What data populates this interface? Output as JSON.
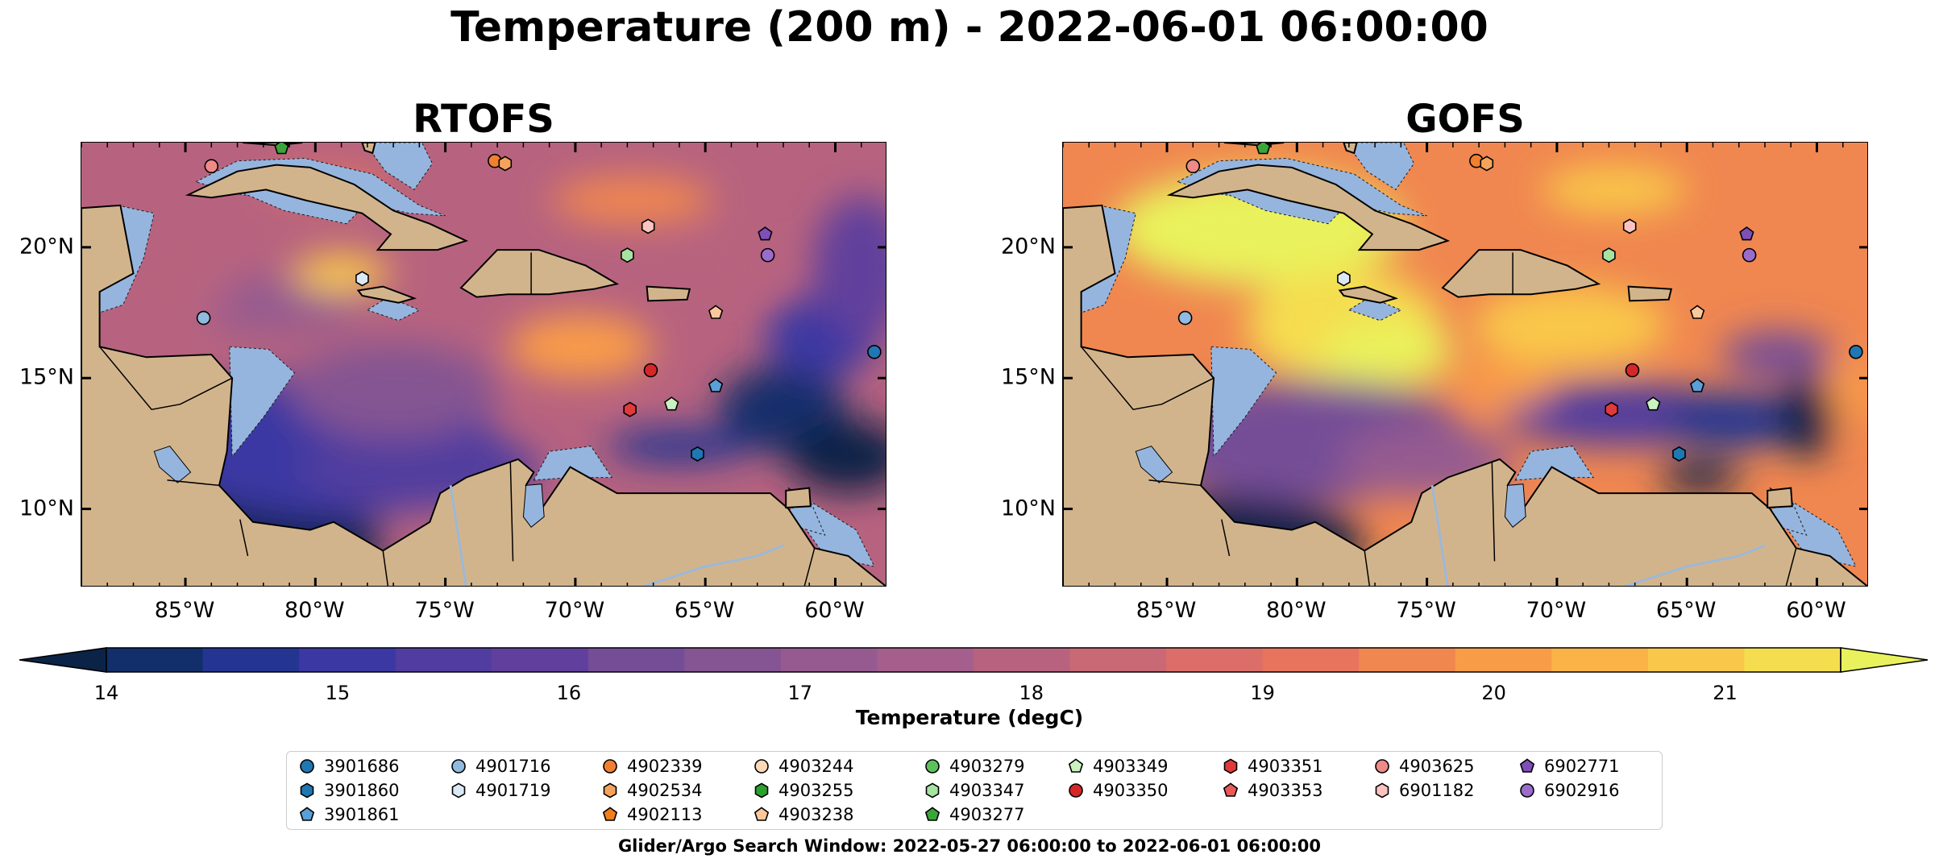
{
  "title": "Temperature (200 m) - 2022-06-01 06:00:00",
  "panels": [
    {
      "title": "RTOFS"
    },
    {
      "title": "GOFS"
    }
  ],
  "axes": {
    "lon_ticks": [
      "85°W",
      "80°W",
      "75°W",
      "70°W",
      "65°W",
      "60°W"
    ],
    "lon_values": [
      -85,
      -80,
      -75,
      -70,
      -65,
      -60
    ],
    "lat_ticks": [
      "20°N",
      "15°N",
      "10°N"
    ],
    "lat_values": [
      20,
      15,
      10
    ],
    "extent": {
      "lon": [
        -89,
        -58
      ],
      "lat": [
        7,
        24
      ]
    }
  },
  "colorbar": {
    "title": "Temperature (degC)",
    "ticks": [
      "14",
      "15",
      "16",
      "17",
      "18",
      "19",
      "20",
      "21"
    ],
    "levels_range": [
      14,
      21.5
    ],
    "step": 0.5,
    "extend": "both",
    "colormap": "thermal",
    "colors": [
      "#0b2347",
      "#122e6b",
      "#233591",
      "#3b37a3",
      "#513d9f",
      "#613f9c",
      "#744d97",
      "#845592",
      "#955b90",
      "#a55f8c",
      "#b7637f",
      "#c96976",
      "#dc6e69",
      "#e8745d",
      "#f08750",
      "#f99c48",
      "#fbb246",
      "#f9c84a",
      "#f5dd50",
      "#e9f25c"
    ]
  },
  "legend": {
    "columns": [
      [
        {
          "id": "3901686",
          "marker": "circle",
          "color": "#1f77b4"
        },
        {
          "id": "3901860",
          "marker": "hexagon",
          "color": "#1f77b4"
        },
        {
          "id": "3901861",
          "marker": "pentagon",
          "color": "#5aa0d8"
        }
      ],
      [
        {
          "id": "4901716",
          "marker": "circle",
          "color": "#8fbbe0"
        },
        {
          "id": "4901719",
          "marker": "hexagon",
          "color": "#dbe9f6"
        }
      ],
      [
        {
          "id": "4902339",
          "marker": "circle",
          "color": "#f08030"
        },
        {
          "id": "4902534",
          "marker": "hexagon",
          "color": "#f5a35c"
        },
        {
          "id": "4902113",
          "marker": "pentagon",
          "color": "#f07f1a"
        }
      ],
      [
        {
          "id": "4903244",
          "marker": "circle",
          "color": "#fbd9b8"
        },
        {
          "id": "4903255",
          "marker": "hexagon",
          "color": "#2ca02c"
        },
        {
          "id": "4903238",
          "marker": "pentagon",
          "color": "#fcc89b"
        }
      ],
      [
        {
          "id": "4903279",
          "marker": "circle",
          "color": "#5bc25b"
        },
        {
          "id": "4903347",
          "marker": "hexagon",
          "color": "#a6e3a1"
        },
        {
          "id": "4903277",
          "marker": "pentagon",
          "color": "#3aa63a"
        }
      ],
      [
        {
          "id": "4903349",
          "marker": "pentagon",
          "color": "#c9f2c0"
        },
        {
          "id": "4903350",
          "marker": "circle",
          "color": "#d62728"
        }
      ],
      [
        {
          "id": "4903351",
          "marker": "hexagon",
          "color": "#e03a3a"
        },
        {
          "id": "4903353",
          "marker": "pentagon",
          "color": "#e8595a"
        }
      ],
      [
        {
          "id": "4903625",
          "marker": "circle",
          "color": "#f08a88"
        },
        {
          "id": "6901182",
          "marker": "hexagon",
          "color": "#fbc2c0"
        }
      ],
      [
        {
          "id": "6902771",
          "marker": "pentagon",
          "color": "#7f4fb8"
        },
        {
          "id": "6902916",
          "marker": "circle",
          "color": "#9a6ccc"
        }
      ]
    ]
  },
  "floats": [
    {
      "lon": -84.0,
      "lat": 23.1,
      "marker": "circle",
      "color": "#f08a88"
    },
    {
      "lon": -81.3,
      "lat": 23.8,
      "marker": "pentagon",
      "color": "#3aa63a"
    },
    {
      "lon": -73.1,
      "lat": 23.3,
      "marker": "circle",
      "color": "#f08030"
    },
    {
      "lon": -72.7,
      "lat": 23.2,
      "marker": "hexagon",
      "color": "#f5a35c"
    },
    {
      "lon": -67.2,
      "lat": 20.8,
      "marker": "hexagon",
      "color": "#fbc2c0"
    },
    {
      "lon": -62.7,
      "lat": 20.5,
      "marker": "pentagon",
      "color": "#7f4fb8"
    },
    {
      "lon": -62.6,
      "lat": 19.7,
      "marker": "circle",
      "color": "#9a6ccc"
    },
    {
      "lon": -68.0,
      "lat": 19.7,
      "marker": "hexagon",
      "color": "#a6e3a1"
    },
    {
      "lon": -78.2,
      "lat": 18.8,
      "marker": "hexagon",
      "color": "#dbe9f6"
    },
    {
      "lon": -84.3,
      "lat": 17.3,
      "marker": "circle",
      "color": "#8fbbe0"
    },
    {
      "lon": -64.6,
      "lat": 17.5,
      "marker": "pentagon",
      "color": "#fcc89b"
    },
    {
      "lon": -58.5,
      "lat": 16.0,
      "marker": "circle",
      "color": "#1f77b4"
    },
    {
      "lon": -67.1,
      "lat": 15.3,
      "marker": "circle",
      "color": "#d62728"
    },
    {
      "lon": -64.6,
      "lat": 14.7,
      "marker": "pentagon",
      "color": "#5aa0d8"
    },
    {
      "lon": -66.3,
      "lat": 14.0,
      "marker": "pentagon",
      "color": "#c9f2c0"
    },
    {
      "lon": -67.9,
      "lat": 13.8,
      "marker": "hexagon",
      "color": "#e03a3a"
    },
    {
      "lon": -65.3,
      "lat": 12.1,
      "marker": "hexagon",
      "color": "#1f77b4"
    }
  ],
  "caption": "Glider/Argo Search Window: 2022-05-27 06:00:00 to 2022-06-01 06:00:00"
}
